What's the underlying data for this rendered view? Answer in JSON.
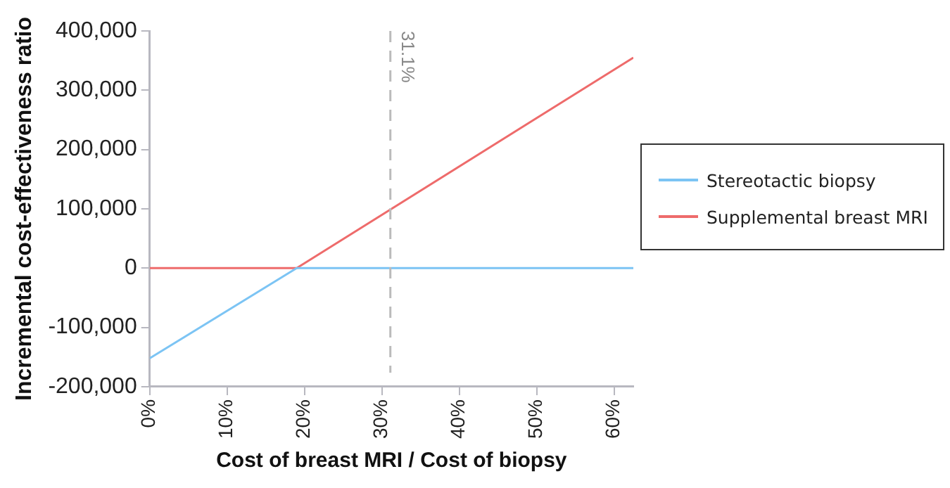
{
  "chart_data": {
    "type": "line",
    "xlabel": "Cost of breast MRI / Cost of biopsy",
    "ylabel": "Incremental cost-effectiveness ratio",
    "series": [
      {
        "name": "Stereotactic biopsy",
        "color": "#7cc4f4",
        "x": [
          0,
          19,
          62.5
        ],
        "values": [
          -152000,
          0,
          0
        ]
      },
      {
        "name": "Supplemental breast MRI",
        "color": "#ee6b6b",
        "x": [
          0,
          19,
          62.5
        ],
        "values": [
          0,
          0,
          355000
        ]
      }
    ],
    "xlim": [
      0,
      62.5
    ],
    "xticks": [
      {
        "value": 0,
        "label": "0%"
      },
      {
        "value": 10,
        "label": "10%"
      },
      {
        "value": 20,
        "label": "20%"
      },
      {
        "value": 30,
        "label": "30%"
      },
      {
        "value": 40,
        "label": "40%"
      },
      {
        "value": 50,
        "label": "50%"
      },
      {
        "value": 60,
        "label": "60%"
      }
    ],
    "ylim": [
      -200000,
      400000
    ],
    "yticks": [
      {
        "value": -200000,
        "label": "-200,000"
      },
      {
        "value": -100000,
        "label": "-100,000"
      },
      {
        "value": 0,
        "label": "0"
      },
      {
        "value": 100000,
        "label": "100,000"
      },
      {
        "value": 200000,
        "label": "200,000"
      },
      {
        "value": 300000,
        "label": "300,000"
      },
      {
        "value": 400000,
        "label": "400,000"
      }
    ],
    "ref_lines": [
      {
        "axis": "x",
        "value": 31.1,
        "label": "31.1%",
        "color": "#bbbbbb",
        "line_style": "dashed"
      }
    ],
    "grid": false,
    "legend": "right",
    "marker": "none",
    "line_style": "solid"
  }
}
